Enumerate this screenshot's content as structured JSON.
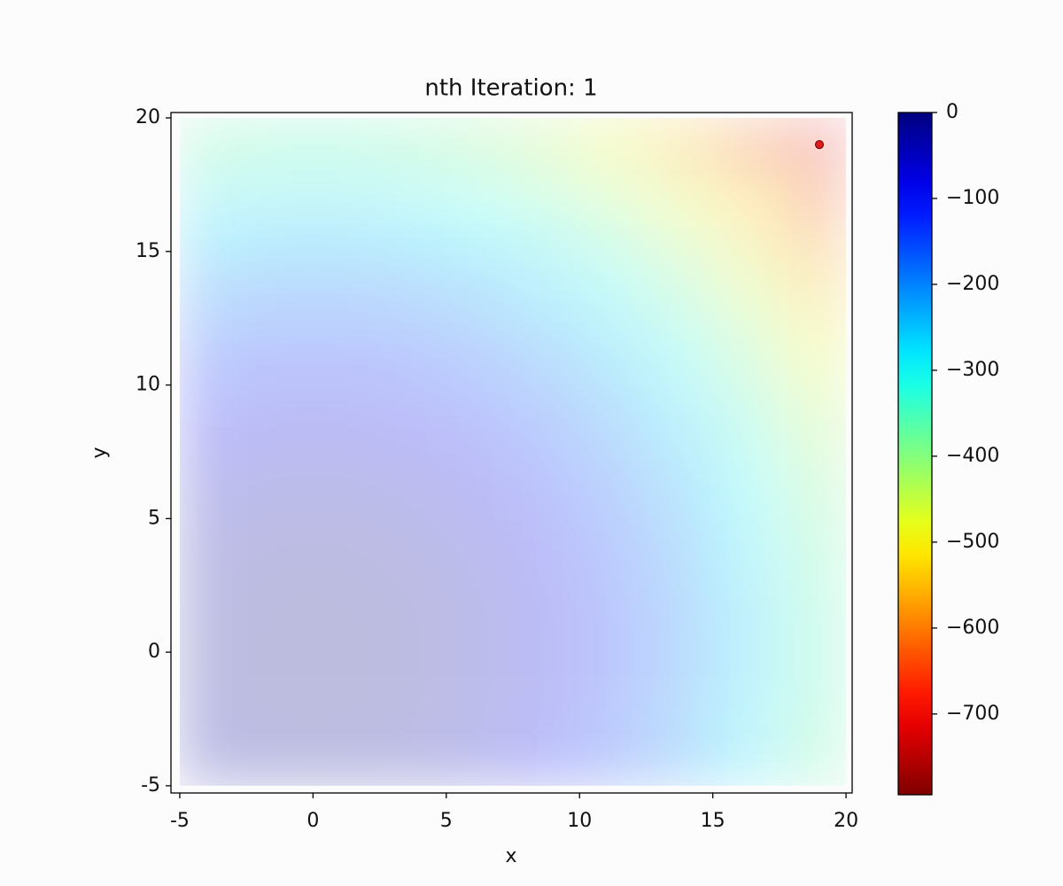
{
  "chart_data": {
    "type": "heatmap",
    "title": "nth Iteration: 1",
    "x_label": "x",
    "y_label": "y",
    "x_edges": [
      -5,
      -2.5,
      0,
      2.5,
      5,
      7.5,
      10,
      12.5,
      15,
      17.5,
      20
    ],
    "y_edges": [
      -5,
      -2.5,
      0,
      2.5,
      5,
      7.5,
      10,
      12.5,
      15,
      17.5,
      20
    ],
    "z": [
      [
        -28,
        -16,
        -16,
        -28,
        -53,
        -91,
        -141,
        -203,
        -278,
        -366
      ],
      [
        -16,
        -4,
        -4,
        -16,
        -41,
        -79,
        -129,
        -191,
        -266,
        -354
      ],
      [
        -16,
        -4,
        -4,
        -16,
        -41,
        -79,
        -129,
        -191,
        -266,
        -354
      ],
      [
        -28,
        -16,
        -16,
        -28,
        -53,
        -91,
        -141,
        -203,
        -278,
        -366
      ],
      [
        -53,
        -41,
        -41,
        -53,
        -78,
        -116,
        -166,
        -228,
        -303,
        -391
      ],
      [
        -91,
        -79,
        -79,
        -91,
        -116,
        -154,
        -204,
        -266,
        -341,
        -429
      ],
      [
        -141,
        -129,
        -129,
        -141,
        -166,
        -204,
        -254,
        -316,
        -391,
        -479
      ],
      [
        -203,
        -191,
        -191,
        -203,
        -228,
        -266,
        -316,
        -378,
        -453,
        -541
      ],
      [
        -278,
        -266,
        -266,
        -278,
        -303,
        -341,
        -391,
        -453,
        -528,
        -616
      ],
      [
        -366,
        -354,
        -354,
        -366,
        -391,
        -429,
        -479,
        -541,
        -616,
        -704
      ]
    ],
    "colormap": "jet_r",
    "alpha": 0.25,
    "xlim": [
      -5.33,
      20.23
    ],
    "ylim": [
      -5.27,
      20.2
    ],
    "xticks": [
      -5,
      0,
      5,
      10,
      15,
      20
    ],
    "yticks": [
      -5,
      0,
      5,
      10,
      15,
      20
    ],
    "colorbar": {
      "lim": [
        -794,
        0
      ],
      "ticks": [
        0,
        {
          "value": -100,
          "label": "−100"
        },
        {
          "value": -200,
          "label": "−200"
        },
        {
          "value": -300,
          "label": "−300"
        },
        {
          "value": -400,
          "label": "−400"
        },
        {
          "value": -500,
          "label": "−500"
        },
        {
          "value": -600,
          "label": "−600"
        },
        {
          "value": -700,
          "label": "−700"
        }
      ]
    },
    "points": {
      "x": [
        19
      ],
      "y": [
        19
      ],
      "color": "#e31a1c"
    }
  }
}
